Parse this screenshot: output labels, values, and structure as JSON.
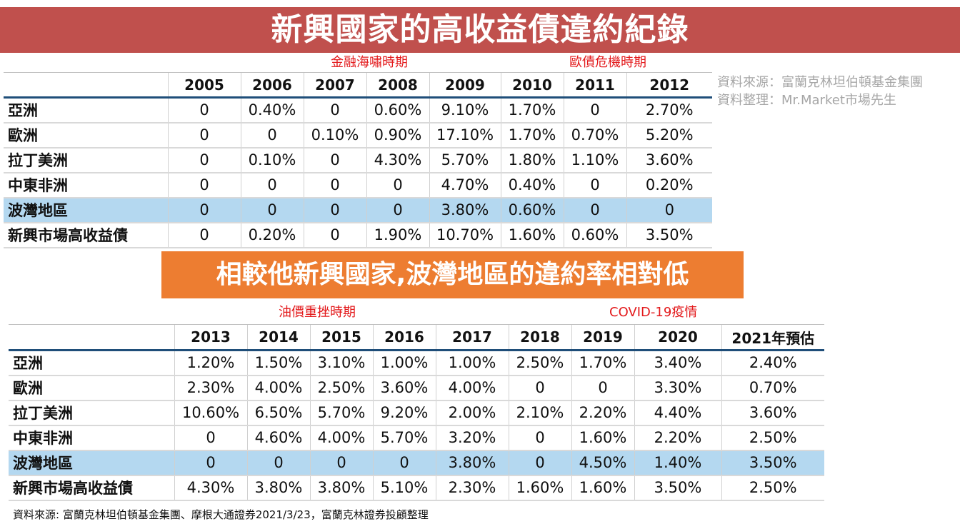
{
  "title": "新興國家的高收益債違約紀錄",
  "subtitle": "相較他新興國家,波灣地區的違約率相對低",
  "period_labels_top": {
    "financial_tsunami": "金融海嘯時期",
    "euro_debt_crisis": "歐債危機時期"
  },
  "period_labels_bottom": {
    "oil_price_slump": "油價重挫時期",
    "covid": "COVID-19疫情"
  },
  "source_right": {
    "line1": "資料來源：富蘭克林坦伯頓基金集團",
    "line2": "資料整理：Mr.Market市場先生"
  },
  "footer": "資料來源: 富蘭克林坦伯頓基金集團、摩根大通證券2021/3/23，富蘭克林證券投顧整理",
  "highlight_color": "#b4d8f0",
  "table1": {
    "headers": [
      "",
      "2005",
      "2006",
      "2007",
      "2008",
      "2009",
      "2010",
      "2011",
      "2012"
    ],
    "rows": [
      {
        "label": "亞洲",
        "values": [
          "0",
          "0.40%",
          "0",
          "0.60%",
          "9.10%",
          "1.70%",
          "0",
          "2.70%"
        ]
      },
      {
        "label": "歐洲",
        "values": [
          "0",
          "0",
          "0.10%",
          "0.90%",
          "17.10%",
          "1.70%",
          "0.70%",
          "5.20%"
        ]
      },
      {
        "label": "拉丁美洲",
        "values": [
          "0",
          "0.10%",
          "0",
          "4.30%",
          "5.70%",
          "1.80%",
          "1.10%",
          "3.60%"
        ]
      },
      {
        "label": "中東非洲",
        "values": [
          "0",
          "0",
          "0",
          "0",
          "4.70%",
          "0.40%",
          "0",
          "0.20%"
        ]
      },
      {
        "label": "波灣地區",
        "values": [
          "0",
          "0",
          "0",
          "0",
          "3.80%",
          "0.60%",
          "0",
          "0"
        ]
      },
      {
        "label": "新興市場高收益債",
        "values": [
          "0",
          "0.20%",
          "0",
          "1.90%",
          "10.70%",
          "1.60%",
          "0.60%",
          "3.50%"
        ]
      }
    ]
  },
  "table2": {
    "headers": [
      "",
      "2013",
      "2014",
      "2015",
      "2016",
      "2017",
      "2018",
      "2019",
      "2020",
      "2021年預估"
    ],
    "rows": [
      {
        "label": "亞洲",
        "values": [
          "1.20%",
          "1.50%",
          "3.10%",
          "1.00%",
          "1.00%",
          "2.50%",
          "1.70%",
          "3.40%",
          "2.40%"
        ]
      },
      {
        "label": "歐洲",
        "values": [
          "2.30%",
          "4.00%",
          "2.50%",
          "3.60%",
          "4.00%",
          "0",
          "0",
          "3.30%",
          "0.70%"
        ]
      },
      {
        "label": "拉丁美洲",
        "values": [
          "10.60%",
          "6.50%",
          "5.70%",
          "9.20%",
          "2.00%",
          "2.10%",
          "2.20%",
          "4.40%",
          "3.60%"
        ]
      },
      {
        "label": "中東非洲",
        "values": [
          "0",
          "4.60%",
          "4.00%",
          "5.70%",
          "3.20%",
          "0",
          "1.60%",
          "2.20%",
          "2.50%"
        ]
      },
      {
        "label": "波灣地區",
        "values": [
          "0",
          "0",
          "0",
          "0",
          "3.80%",
          "0",
          "4.50%",
          "1.40%",
          "3.50%"
        ]
      },
      {
        "label": "新興市場高收益債",
        "values": [
          "4.30%",
          "3.80%",
          "3.80%",
          "5.10%",
          "2.30%",
          "1.60%",
          "1.60%",
          "3.50%",
          "2.50%"
        ]
      }
    ]
  }
}
